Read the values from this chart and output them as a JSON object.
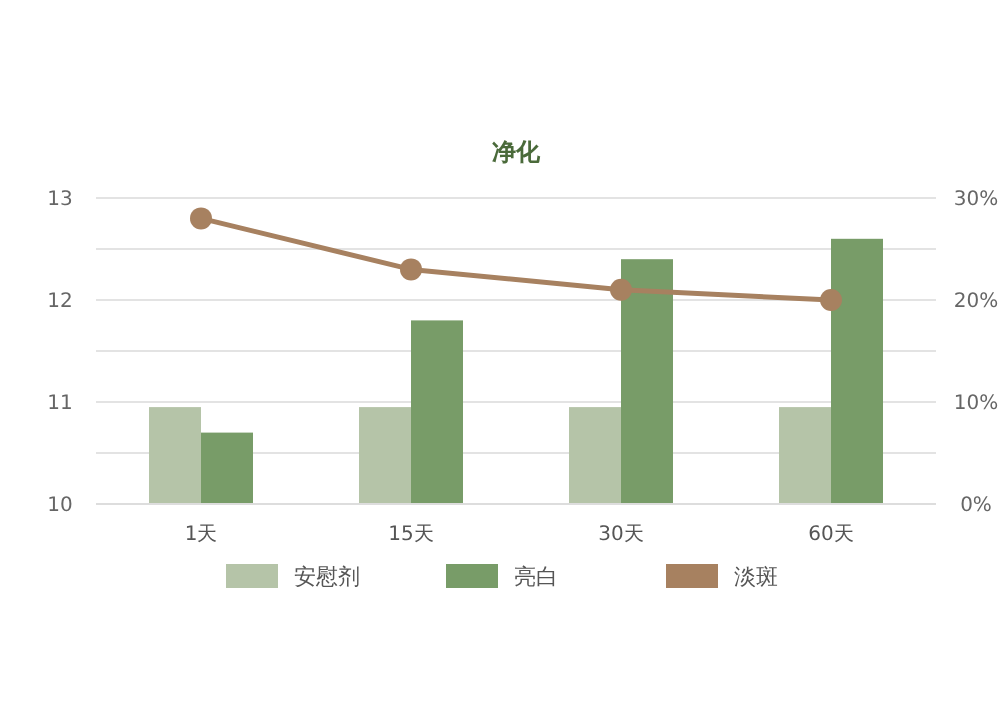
{
  "chart_data": {
    "type": "bar",
    "title": "净化",
    "categories": [
      "1天",
      "15天",
      "30天",
      "60天"
    ],
    "series": [
      {
        "name": "安慰剂",
        "color": "#b5c4a8",
        "values": [
          10.95,
          10.95,
          10.95,
          10.95
        ]
      },
      {
        "name": "亮白",
        "color": "#789c68",
        "values": [
          10.7,
          11.8,
          12.4,
          12.6
        ]
      },
      {
        "name": "淡斑",
        "color": "#a78160",
        "type": "line",
        "axis": "y2",
        "values": [
          28,
          23,
          21,
          20
        ]
      }
    ],
    "ylim": [
      10,
      13
    ],
    "yticks": [
      10,
      {
        "value": 10.5,
        "label": null
      },
      11,
      {
        "value": 11.5,
        "label": null
      },
      12,
      {
        "value": 12.5,
        "label": null
      },
      13
    ],
    "y2lim": [
      0,
      30
    ],
    "y2ticks": [
      {
        "value": 0,
        "label": "0%"
      },
      {
        "value": 10,
        "label": "10%"
      },
      {
        "value": 20,
        "label": "20%"
      },
      {
        "value": 30,
        "label": "30%"
      }
    ],
    "grid": "y",
    "legend": "bottom",
    "marker": "circle"
  }
}
